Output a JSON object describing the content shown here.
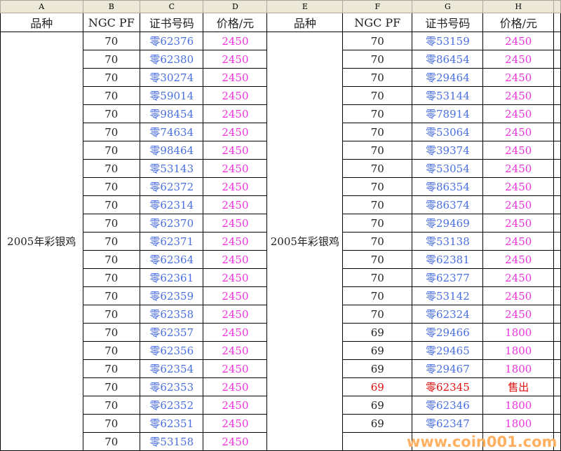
{
  "columns": [
    "A",
    "B",
    "C",
    "D",
    "E",
    "F",
    "G",
    "H"
  ],
  "headers": [
    "品种",
    "NGC PF",
    "证书号码",
    "价格/元",
    "品种",
    "NGC PF",
    "证书号码",
    "价格/元"
  ],
  "variety": "2005年彩银鸡",
  "left_rows": [
    [
      "70",
      "零62376",
      "2450"
    ],
    [
      "70",
      "零62380",
      "2450"
    ],
    [
      "70",
      "零30274",
      "2450"
    ],
    [
      "70",
      "零59014",
      "2450"
    ],
    [
      "70",
      "零98454",
      "2450"
    ],
    [
      "70",
      "零74634",
      "2450"
    ],
    [
      "70",
      "零98464",
      "2450"
    ],
    [
      "70",
      "零53143",
      "2450"
    ],
    [
      "70",
      "零62372",
      "2450"
    ],
    [
      "70",
      "零62314",
      "2450"
    ],
    [
      "70",
      "零62370",
      "2450"
    ],
    [
      "70",
      "零62371",
      "2450"
    ],
    [
      "70",
      "零62364",
      "2450"
    ],
    [
      "70",
      "零62361",
      "2450"
    ],
    [
      "70",
      "零62359",
      "2450"
    ],
    [
      "70",
      "零62358",
      "2450"
    ],
    [
      "70",
      "零62357",
      "2450"
    ],
    [
      "70",
      "零62356",
      "2450"
    ],
    [
      "70",
      "零62354",
      "2450"
    ],
    [
      "70",
      "零62353",
      "2450"
    ],
    [
      "70",
      "零62352",
      "2450"
    ],
    [
      "70",
      "零62351",
      "2450"
    ],
    [
      "70",
      "零53158",
      "2450"
    ]
  ],
  "right_rows": [
    [
      "70",
      "零53159",
      "2450"
    ],
    [
      "70",
      "零86454",
      "2450"
    ],
    [
      "70",
      "零29464",
      "2450"
    ],
    [
      "70",
      "零53144",
      "2450"
    ],
    [
      "70",
      "零78914",
      "2450"
    ],
    [
      "70",
      "零53064",
      "2450"
    ],
    [
      "70",
      "零39374",
      "2450"
    ],
    [
      "70",
      "零53054",
      "2450"
    ],
    [
      "70",
      "零86354",
      "2450"
    ],
    [
      "70",
      "零86374",
      "2450"
    ],
    [
      "70",
      "零29469",
      "2450"
    ],
    [
      "70",
      "零53138",
      "2450"
    ],
    [
      "70",
      "零62381",
      "2450"
    ],
    [
      "70",
      "零62377",
      "2450"
    ],
    [
      "70",
      "零53142",
      "2450"
    ],
    [
      "70",
      "零62324",
      "2450"
    ],
    [
      "69",
      "零29466",
      "1800"
    ],
    [
      "69",
      "零29465",
      "1800"
    ],
    [
      "69",
      "零29467",
      "1800"
    ],
    [
      "69",
      "零62345",
      "售出"
    ],
    [
      "69",
      "零62346",
      "1800"
    ],
    [
      "69",
      "零62347",
      "1800"
    ],
    [
      "",
      "",
      ""
    ]
  ],
  "sold_row_index": 19,
  "watermark": "www.coin001.com",
  "colors": {
    "cert": "#4a6fe0",
    "price": "#ee33dd",
    "sold": "#e01010"
  }
}
